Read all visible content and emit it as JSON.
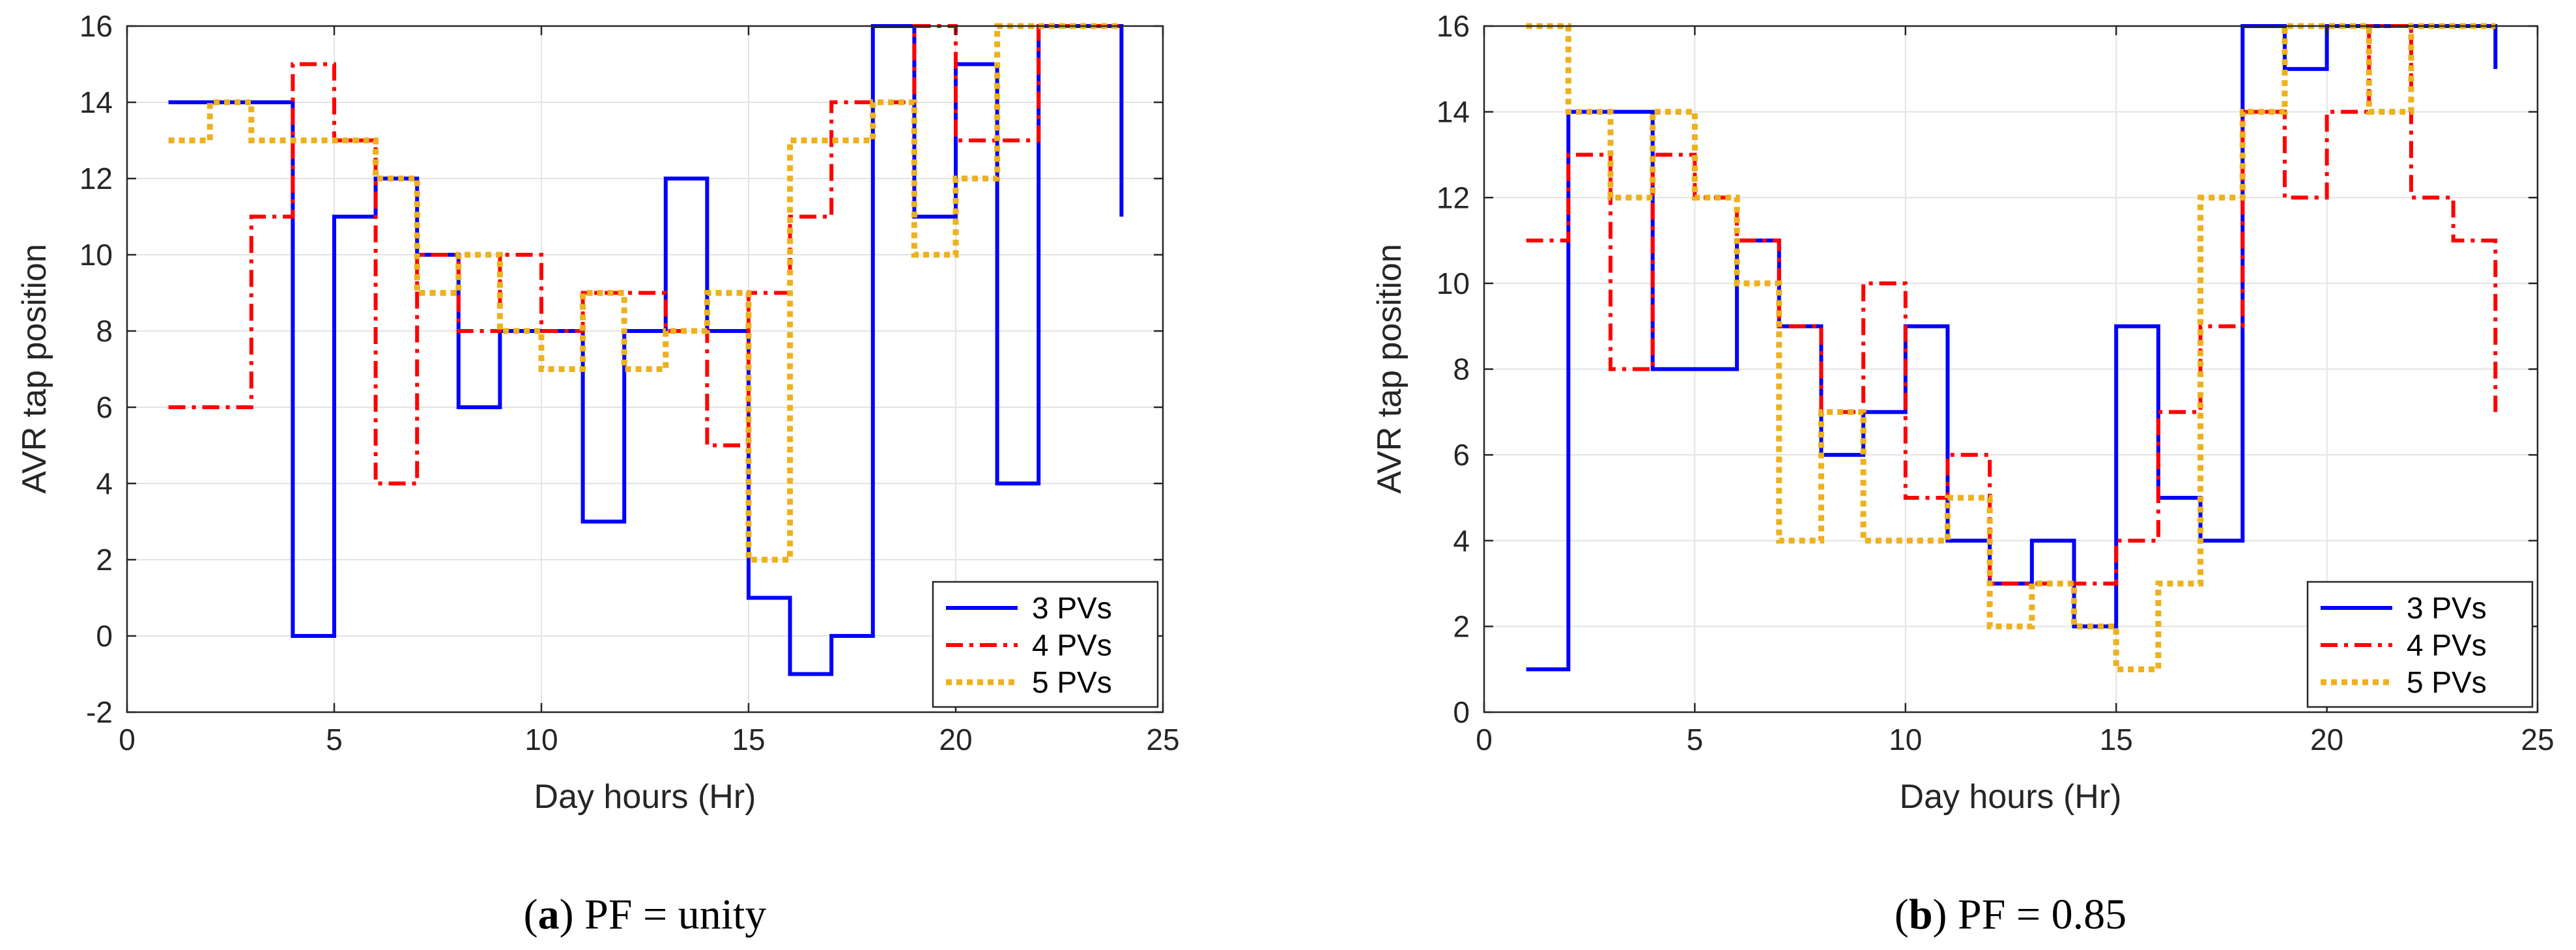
{
  "chart_data": [
    {
      "id": "a",
      "type": "line",
      "step": true,
      "xlabel": "Day hours (Hr)",
      "ylabel": "AVR tap position",
      "xlim": [
        0,
        25
      ],
      "ylim": [
        -2,
        16
      ],
      "xticks": [
        0,
        5,
        10,
        15,
        20,
        25
      ],
      "yticks": [
        -2,
        0,
        2,
        4,
        6,
        8,
        10,
        12,
        14,
        16
      ],
      "grid": true,
      "legend_position": "bottom-right",
      "caption": {
        "letter": "a",
        "text": "PF = unity"
      },
      "x": [
        1,
        2,
        3,
        4,
        5,
        6,
        7,
        8,
        9,
        10,
        11,
        12,
        13,
        14,
        15,
        16,
        17,
        18,
        19,
        20,
        21,
        22,
        23,
        24
      ],
      "series": [
        {
          "name": "3 PVs",
          "style": "solid",
          "color": "#0000ff",
          "values": [
            14,
            14,
            14,
            0,
            11,
            12,
            10,
            6,
            8,
            8,
            3,
            8,
            12,
            8,
            1,
            -1,
            0,
            16,
            11,
            15,
            4,
            16,
            16,
            11
          ]
        },
        {
          "name": "4 PVs",
          "style": "dashdot",
          "color": "#ff0000",
          "values": [
            6,
            6,
            11,
            15,
            13,
            4,
            10,
            8,
            10,
            8,
            9,
            9,
            8,
            5,
            9,
            11,
            14,
            14,
            16,
            13,
            13,
            16,
            16,
            16
          ]
        },
        {
          "name": "5 PVs",
          "style": "dotted",
          "color": "#edb120",
          "values": [
            13,
            14,
            13,
            13,
            13,
            12,
            9,
            10,
            8,
            7,
            9,
            7,
            8,
            9,
            2,
            13,
            13,
            14,
            10,
            12,
            16,
            16,
            16,
            16
          ]
        }
      ]
    },
    {
      "id": "b",
      "type": "line",
      "step": true,
      "xlabel": "Day hours (Hr)",
      "ylabel": "AVR tap position",
      "xlim": [
        0,
        25
      ],
      "ylim": [
        0,
        16
      ],
      "xticks": [
        0,
        5,
        10,
        15,
        20,
        25
      ],
      "yticks": [
        0,
        2,
        4,
        6,
        8,
        10,
        12,
        14,
        16
      ],
      "grid": true,
      "legend_position": "bottom-right",
      "caption": {
        "letter": "b",
        "text": "PF = 0.85"
      },
      "x": [
        1,
        2,
        3,
        4,
        5,
        6,
        7,
        8,
        9,
        10,
        11,
        12,
        13,
        14,
        15,
        16,
        17,
        18,
        19,
        20,
        21,
        22,
        23,
        24
      ],
      "series": [
        {
          "name": "3 PVs",
          "style": "solid",
          "color": "#0000ff",
          "values": [
            1,
            14,
            14,
            8,
            8,
            11,
            9,
            6,
            7,
            9,
            4,
            3,
            4,
            2,
            9,
            5,
            4,
            16,
            15,
            16,
            16,
            16,
            16,
            15
          ]
        },
        {
          "name": "4 PVs",
          "style": "dashdot",
          "color": "#ff0000",
          "values": [
            11,
            13,
            8,
            13,
            12,
            11,
            9,
            7,
            10,
            5,
            6,
            3,
            3,
            3,
            4,
            7,
            9,
            14,
            12,
            14,
            16,
            12,
            11,
            7
          ]
        },
        {
          "name": "5 PVs",
          "style": "dotted",
          "color": "#edb120",
          "values": [
            16,
            14,
            12,
            14,
            12,
            10,
            4,
            7,
            4,
            4,
            5,
            2,
            3,
            2,
            1,
            3,
            12,
            14,
            16,
            16,
            14,
            16,
            16,
            16
          ]
        }
      ]
    }
  ]
}
